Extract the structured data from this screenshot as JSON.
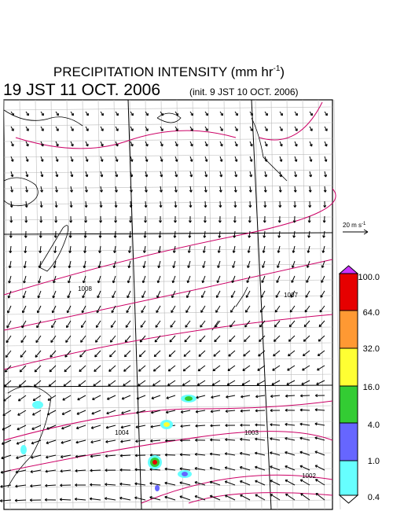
{
  "title": {
    "main": "PRECIPITATION INTENSITY (mm hr",
    "exponent": "-1",
    "close": ")"
  },
  "valid_time": "19 JST 11 OCT. 2006",
  "init_time": "(init. 9 JST 10 OCT. 2006)",
  "vector_key": {
    "text": "20 m s",
    "exponent": "-1"
  },
  "colorbar": {
    "levels": [
      "100.0",
      "64.0",
      "32.0",
      "16.0",
      "4.0",
      "1.0",
      "0.4"
    ]
  },
  "isobar_labels": [
    "1008",
    "1007",
    "1004",
    "1003",
    "1002"
  ]
}
